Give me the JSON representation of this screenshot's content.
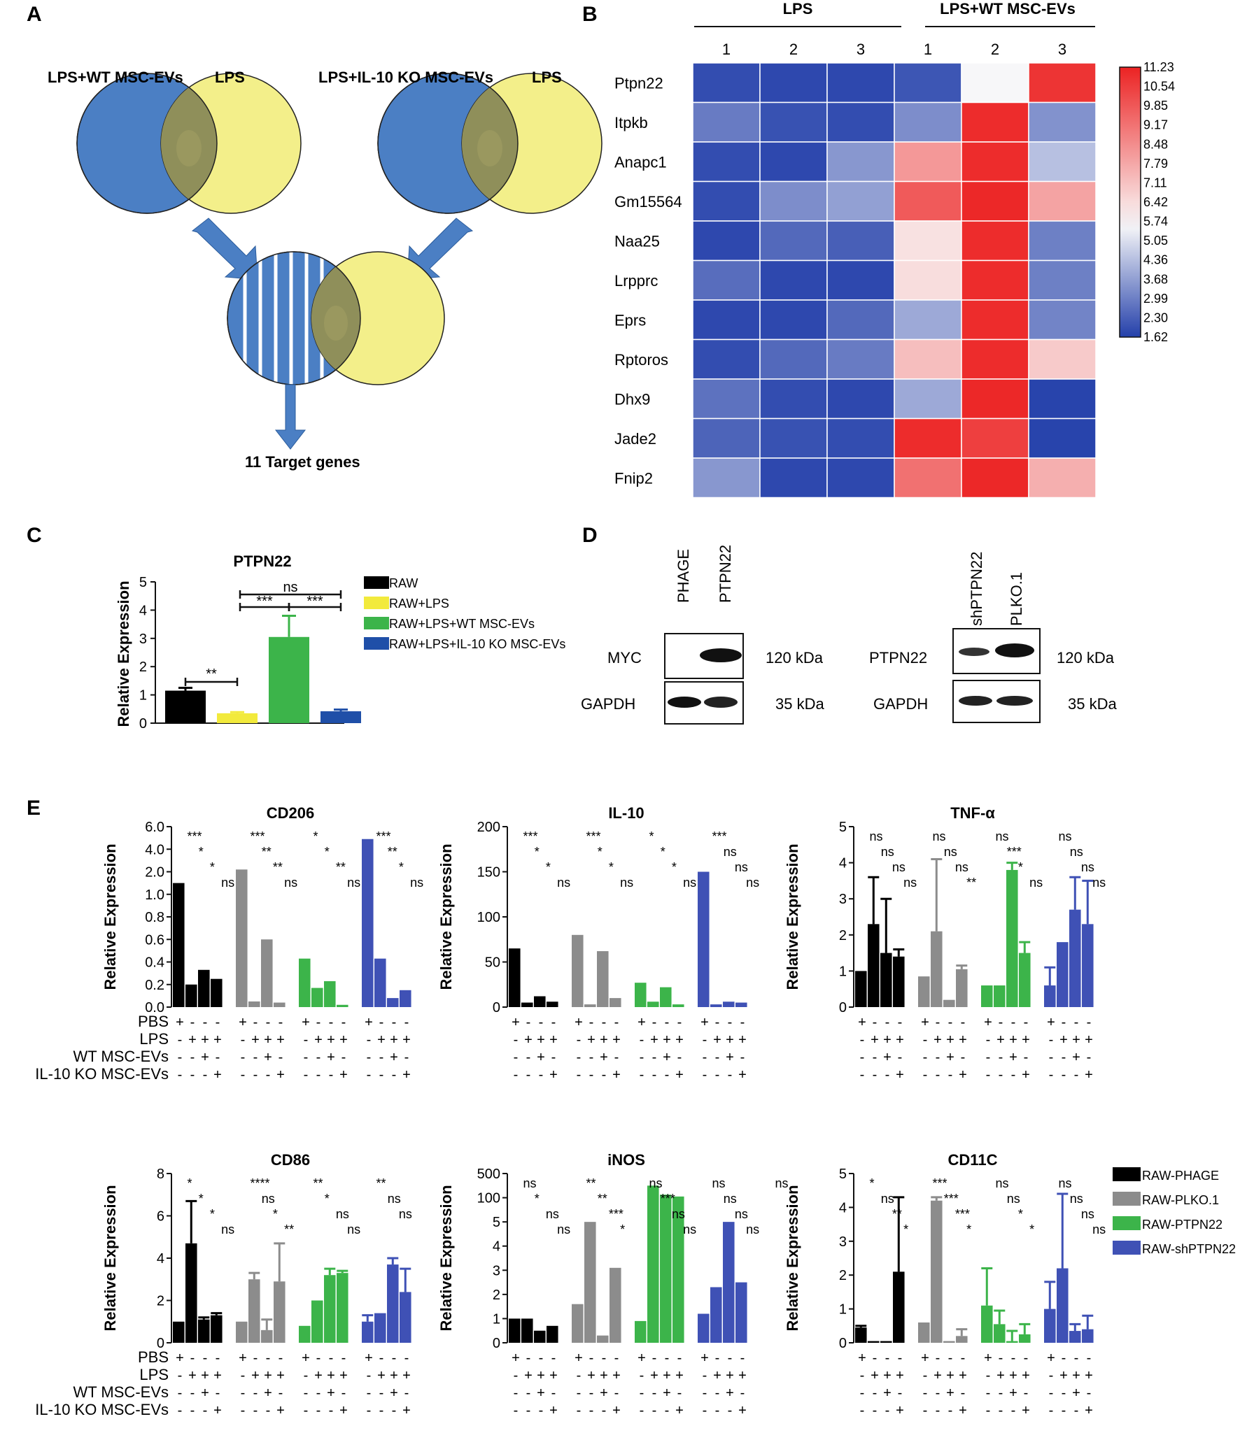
{
  "panels": {
    "A": "A",
    "B": "B",
    "C": "C",
    "D": "D",
    "E": "E"
  },
  "venn": {
    "left_a": "LPS+WT MSC-EVs",
    "left_b": "LPS",
    "right_a": "LPS+IL-10 KO MSC-EVs",
    "right_b": "LPS",
    "result": "11 Target genes",
    "colors": {
      "blue": "#4b7fc4",
      "yellow": "#f3ef8a",
      "overlap": "#8f8f5a"
    }
  },
  "heatmap": {
    "group1": "LPS",
    "group2": "LPS+WT MSC-EVs",
    "replicates": [
      "1",
      "2",
      "3",
      "1",
      "2",
      "3"
    ],
    "genes": [
      "Ptpn22",
      "Itpkb",
      "Anapc1",
      "Gm15564",
      "Naa25",
      "Lrpprc",
      "Eprs",
      "Rptoros",
      "Dhx9",
      "Jade2",
      "Fnip2"
    ],
    "values": [
      [
        1.9,
        1.8,
        1.8,
        2.1,
        5.6,
        10.8
      ],
      [
        2.9,
        2.0,
        1.9,
        3.3,
        11.0,
        3.4
      ],
      [
        1.9,
        1.8,
        3.5,
        8.2,
        11.0,
        4.4
      ],
      [
        1.9,
        3.3,
        3.7,
        9.8,
        11.1,
        7.9
      ],
      [
        1.8,
        2.5,
        2.3,
        6.3,
        11.0,
        3.0
      ],
      [
        2.6,
        1.8,
        1.8,
        6.4,
        11.0,
        3.0
      ],
      [
        1.8,
        1.8,
        2.5,
        3.9,
        11.0,
        3.1
      ],
      [
        1.9,
        2.5,
        2.9,
        7.2,
        11.0,
        6.9
      ],
      [
        2.7,
        1.9,
        1.8,
        3.9,
        11.1,
        1.7
      ],
      [
        2.4,
        2.0,
        1.9,
        11.0,
        10.5,
        1.7
      ],
      [
        3.5,
        1.8,
        1.8,
        9.2,
        11.1,
        7.6
      ]
    ],
    "scale_labels": [
      "11.23",
      "10.54",
      "9.85",
      "9.17",
      "8.48",
      "7.79",
      "7.11",
      "6.42",
      "5.74",
      "5.05",
      "4.36",
      "3.68",
      "2.99",
      "2.30",
      "1.62"
    ],
    "vmin": 1.62,
    "vmax": 11.23
  },
  "chart_data": [
    {
      "id": "C",
      "type": "bar",
      "title": "PTPN22",
      "ylabel": "Relative Expression",
      "ylim": [
        0,
        5
      ],
      "ticks": [
        "0",
        "1",
        "2",
        "3",
        "4",
        "5"
      ],
      "categories": [
        "RAW",
        "RAW+LPS",
        "RAW+LPS+WT MSC-EVs",
        "RAW+LPS+IL-10 KO MSC-EVs"
      ],
      "values": [
        1.15,
        0.35,
        3.05,
        0.42
      ],
      "errors": [
        0.1,
        0.04,
        0.75,
        0.06
      ],
      "colors": [
        "#000000",
        "#f2ea3c",
        "#3cb44a",
        "#1f4fa8"
      ],
      "legend": [
        "RAW",
        "RAW+LPS",
        "RAW+LPS+WT MSC-EVs",
        "RAW+LPS+IL-10 KO MSC-EVs"
      ],
      "annotations": [
        "**",
        "***",
        "***",
        "ns"
      ]
    },
    {
      "id": "E-CD206",
      "type": "bar",
      "title": "CD206",
      "ylabel": "Relative Expression",
      "ticks": [
        "0.0",
        "0.2",
        "0.4",
        "0.6",
        "0.8",
        "1.0",
        "2.0",
        "4.0",
        "6.0"
      ],
      "groups": [
        "RAW-PHAGE",
        "RAW-PLKO.1",
        "RAW-PTPN22",
        "RAW-shPTPN22"
      ],
      "values": [
        [
          1.5,
          0.2,
          0.33,
          0.25
        ],
        [
          2.2,
          0.05,
          0.6,
          0.04
        ],
        [
          0.43,
          0.17,
          0.23,
          0.02
        ],
        [
          4.9,
          0.43,
          0.08,
          0.15
        ]
      ],
      "annotations": [
        "***",
        "*",
        "*",
        "ns",
        "***",
        "**",
        "**",
        "ns",
        "*",
        "*",
        "**",
        "ns",
        "***",
        "**",
        "*",
        "ns"
      ]
    },
    {
      "id": "E-IL-10",
      "type": "bar",
      "title": "IL-10",
      "ylabel": "Relative Expression",
      "ylim": [
        0,
        200
      ],
      "ticks": [
        "0",
        "50",
        "100",
        "150",
        "200"
      ],
      "groups": [
        "RAW-PHAGE",
        "RAW-PLKO.1",
        "RAW-PTPN22",
        "RAW-shPTPN22"
      ],
      "values": [
        [
          65,
          5,
          12,
          6
        ],
        [
          80,
          3,
          62,
          10
        ],
        [
          27,
          6,
          22,
          3
        ],
        [
          150,
          3,
          6,
          5
        ]
      ],
      "annotations": [
        "***",
        "*",
        "*",
        "ns",
        "***",
        "*",
        "*",
        "ns",
        "*",
        "*",
        "*",
        "ns",
        "***",
        "ns",
        "ns",
        "ns"
      ]
    },
    {
      "id": "E-TNF",
      "type": "bar",
      "title": "TNF-α",
      "ylabel": "Relative Expression",
      "ylim": [
        0,
        5
      ],
      "ticks": [
        "0",
        "1",
        "2",
        "3",
        "4",
        "5"
      ],
      "groups": [
        "RAW-PHAGE",
        "RAW-PLKO.1",
        "RAW-PTPN22",
        "RAW-shPTPN22"
      ],
      "values": [
        [
          1.0,
          2.3,
          1.5,
          1.4
        ],
        [
          0.85,
          2.1,
          0.2,
          1.05
        ],
        [
          0.6,
          0.6,
          3.8,
          1.5
        ],
        [
          0.6,
          1.8,
          2.7,
          2.3
        ]
      ],
      "errors": [
        [
          0,
          1.3,
          1.5,
          0.2
        ],
        [
          0,
          2.0,
          0,
          0.1
        ],
        [
          0,
          0,
          0.2,
          0.3
        ],
        [
          0.5,
          0,
          0.9,
          1.2
        ]
      ],
      "annotations": [
        "ns",
        "ns",
        "ns",
        "ns",
        "ns",
        "ns",
        "ns",
        "**",
        "ns",
        "***",
        "*",
        "ns",
        "ns",
        "ns",
        "ns",
        "ns"
      ]
    },
    {
      "id": "E-CD86",
      "type": "bar",
      "title": "CD86",
      "ylabel": "Relative Expression",
      "ylim": [
        0,
        8
      ],
      "ticks": [
        "0",
        "2",
        "4",
        "6",
        "8"
      ],
      "groups": [
        "RAW-PHAGE",
        "RAW-PLKO.1",
        "RAW-PTPN22",
        "RAW-shPTPN22"
      ],
      "values": [
        [
          1.0,
          4.7,
          1.1,
          1.3
        ],
        [
          1.0,
          3.0,
          0.6,
          2.9
        ],
        [
          0.8,
          2.0,
          3.2,
          3.3
        ],
        [
          1.0,
          1.4,
          3.7,
          2.4
        ]
      ],
      "errors": [
        [
          0,
          2.0,
          0.1,
          0.1
        ],
        [
          0,
          0.3,
          0.5,
          1.8
        ],
        [
          0,
          0,
          0.3,
          0.1
        ],
        [
          0.3,
          0,
          0.3,
          1.1
        ]
      ],
      "annotations": [
        "*",
        "*",
        "*",
        "ns",
        "****",
        "ns",
        "*",
        "**",
        "**",
        "*",
        "ns",
        "ns",
        "**",
        "ns",
        "ns"
      ]
    },
    {
      "id": "E-iNOS",
      "type": "bar",
      "title": "iNOS",
      "ylabel": "Relative Expression",
      "ticks": [
        "0",
        "1",
        "2",
        "3",
        "4",
        "5",
        "100",
        "500"
      ],
      "groups": [
        "RAW-PHAGE",
        "RAW-PLKO.1",
        "RAW-PTPN22",
        "RAW-shPTPN22"
      ],
      "values": [
        [
          1.0,
          1.0,
          0.5,
          0.7
        ],
        [
          1.6,
          5.0,
          0.3,
          3.1
        ],
        [
          0.9,
          300,
          150,
          120
        ],
        [
          1.2,
          2.3,
          5.0,
          2.5
        ]
      ],
      "annotations": [
        "ns",
        "*",
        "ns",
        "ns",
        "**",
        "**",
        "***",
        "*",
        "ns",
        "***",
        "ns",
        "ns",
        "ns",
        "ns",
        "ns",
        "ns",
        "ns"
      ]
    },
    {
      "id": "E-CD11C",
      "type": "bar",
      "title": "CD11C",
      "ylabel": "Relative Expression",
      "ylim": [
        0,
        5
      ],
      "ticks": [
        "0",
        "1",
        "2",
        "3",
        "4",
        "5"
      ],
      "groups": [
        "RAW-PHAGE",
        "RAW-PLKO.1",
        "RAW-PTPN22",
        "RAW-shPTPN22"
      ],
      "values": [
        [
          0.45,
          0.05,
          0.05,
          2.1
        ],
        [
          0.6,
          4.2,
          0.05,
          0.2
        ],
        [
          1.1,
          0.55,
          0.05,
          0.25
        ],
        [
          1.0,
          2.2,
          0.35,
          0.4
        ]
      ],
      "errors": [
        [
          0.05,
          0,
          0,
          2.2
        ],
        [
          0,
          0.1,
          0,
          0.2
        ],
        [
          1.1,
          0.4,
          0.3,
          0.3
        ],
        [
          0.8,
          2.2,
          0.2,
          0.4
        ]
      ],
      "annotations": [
        "*",
        "ns",
        "**",
        "*",
        "***",
        "***",
        "***",
        "*",
        "ns",
        "ns",
        "*",
        "*",
        "ns",
        "ns",
        "ns",
        "ns"
      ]
    }
  ],
  "western": {
    "left": {
      "lanes": [
        "PHAGE",
        "PTPN22"
      ],
      "rows": [
        "MYC",
        "GAPDH"
      ],
      "sizes": [
        "120 kDa",
        "35 kDa"
      ]
    },
    "right": {
      "lanes": [
        "shPTPN22",
        "PLKO.1"
      ],
      "rows": [
        "PTPN22",
        "GAPDH"
      ],
      "sizes": [
        "120 kDa",
        "35 kDa"
      ]
    }
  },
  "e_legend": [
    "RAW-PHAGE",
    "RAW-PLKO.1",
    "RAW-PTPN22",
    "RAW-shPTPN22"
  ],
  "e_legend_colors": [
    "#000000",
    "#8c8c8c",
    "#3cb44a",
    "#3f51b5"
  ],
  "treatment_labels": [
    "PBS",
    "LPS",
    "WT MSC-EVs",
    "IL-10 KO MSC-EVs"
  ],
  "treatment_signs": [
    [
      "+",
      "-",
      "-",
      "-"
    ],
    [
      "-",
      "+",
      "+",
      "+"
    ],
    [
      "-",
      "-",
      "+",
      "-"
    ],
    [
      "-",
      "-",
      "-",
      "+"
    ]
  ],
  "common": {
    "ns": "ns",
    "plus": "+",
    "minus": "-"
  }
}
